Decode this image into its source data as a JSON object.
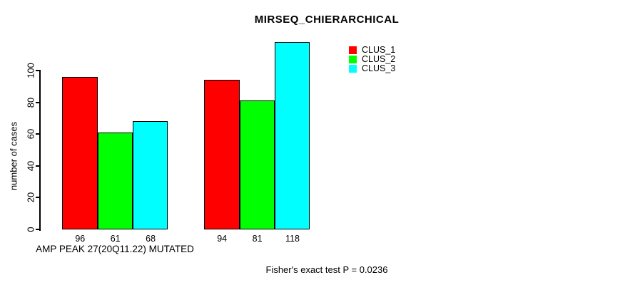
{
  "chart_data": {
    "type": "bar",
    "title": "MIRSEQ_CHIERARCHICAL",
    "ylabel": "number of cases",
    "xlabel": "AMP PEAK 27(20Q11.22) MUTATED",
    "annotation": "Fisher's exact test P = 0.0236",
    "ylim": [
      0,
      100
    ],
    "yticks": [
      0,
      20,
      40,
      60,
      80,
      100
    ],
    "categories": [
      "AMP PEAK 27(20Q11.22) MUTATED",
      ""
    ],
    "series": [
      {
        "name": "CLUS_1",
        "color": "#ff0000",
        "values": [
          96,
          94
        ]
      },
      {
        "name": "CLUS_2",
        "color": "#00ff00",
        "values": [
          61,
          81
        ]
      },
      {
        "name": "CLUS_3",
        "color": "#00ffff",
        "values": [
          68,
          118
        ]
      }
    ],
    "bar_value_labels": [
      [
        "96",
        "61",
        "68"
      ],
      [
        "94",
        "81",
        "118"
      ]
    ],
    "legend_position": "top-right",
    "grid": false,
    "axis_color": "#000000",
    "bar_border_color": "#000000",
    "background_color": "#ffffff"
  }
}
